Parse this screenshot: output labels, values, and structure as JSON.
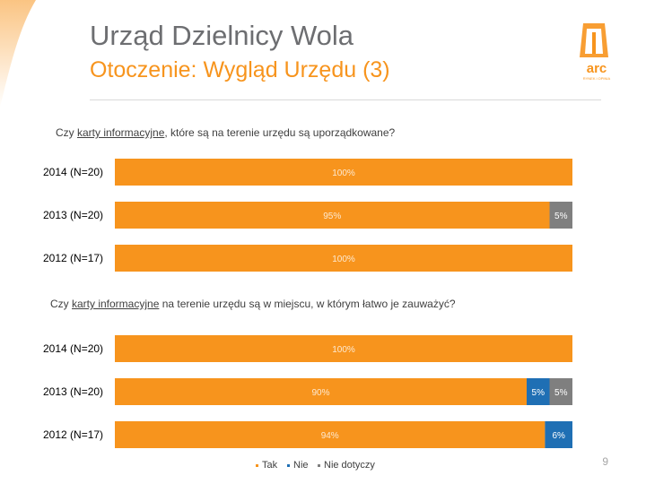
{
  "header": {
    "title": "Urząd Dzielnicy Wola",
    "subtitle": "Otoczenie: Wygląd Urzędu (3)",
    "logo_text": "arc",
    "logo_subtext": "RYNEK i OPINIA"
  },
  "colors": {
    "tak": "#f7941d",
    "nie": "#1f6fb4",
    "nie_dotyczy": "#7f7f7f"
  },
  "questions": [
    {
      "pre": "Czy ",
      "underlined": "karty informacyjne",
      "post": ", które są na terenie urzędu są uporządkowane?"
    },
    {
      "pre": "Czy ",
      "underlined": "karty informacyjne",
      "post": " na terenie urzędu są w miejscu, w którym łatwo je zauważyć?"
    }
  ],
  "legend": [
    "Tak",
    "Nie",
    "Nie dotyczy"
  ],
  "page_number": "9",
  "chart_data": [
    {
      "type": "bar",
      "orientation": "horizontal",
      "stacked": true,
      "categories": [
        "2014 (N=20)",
        "2013 (N=20)",
        "2012 (N=17)"
      ],
      "series": [
        {
          "name": "Tak",
          "values": [
            100,
            95,
            100
          ]
        },
        {
          "name": "Nie",
          "values": [
            0,
            0,
            0
          ]
        },
        {
          "name": "Nie dotyczy",
          "values": [
            0,
            5,
            0
          ]
        }
      ],
      "xlim": [
        0,
        100
      ],
      "units": "%"
    },
    {
      "type": "bar",
      "orientation": "horizontal",
      "stacked": true,
      "categories": [
        "2014 (N=20)",
        "2013 (N=20)",
        "2012 (N=17)"
      ],
      "series": [
        {
          "name": "Tak",
          "values": [
            100,
            90,
            94
          ]
        },
        {
          "name": "Nie",
          "values": [
            0,
            5,
            6
          ]
        },
        {
          "name": "Nie dotyczy",
          "values": [
            0,
            5,
            0
          ]
        }
      ],
      "xlim": [
        0,
        100
      ],
      "units": "%"
    }
  ]
}
